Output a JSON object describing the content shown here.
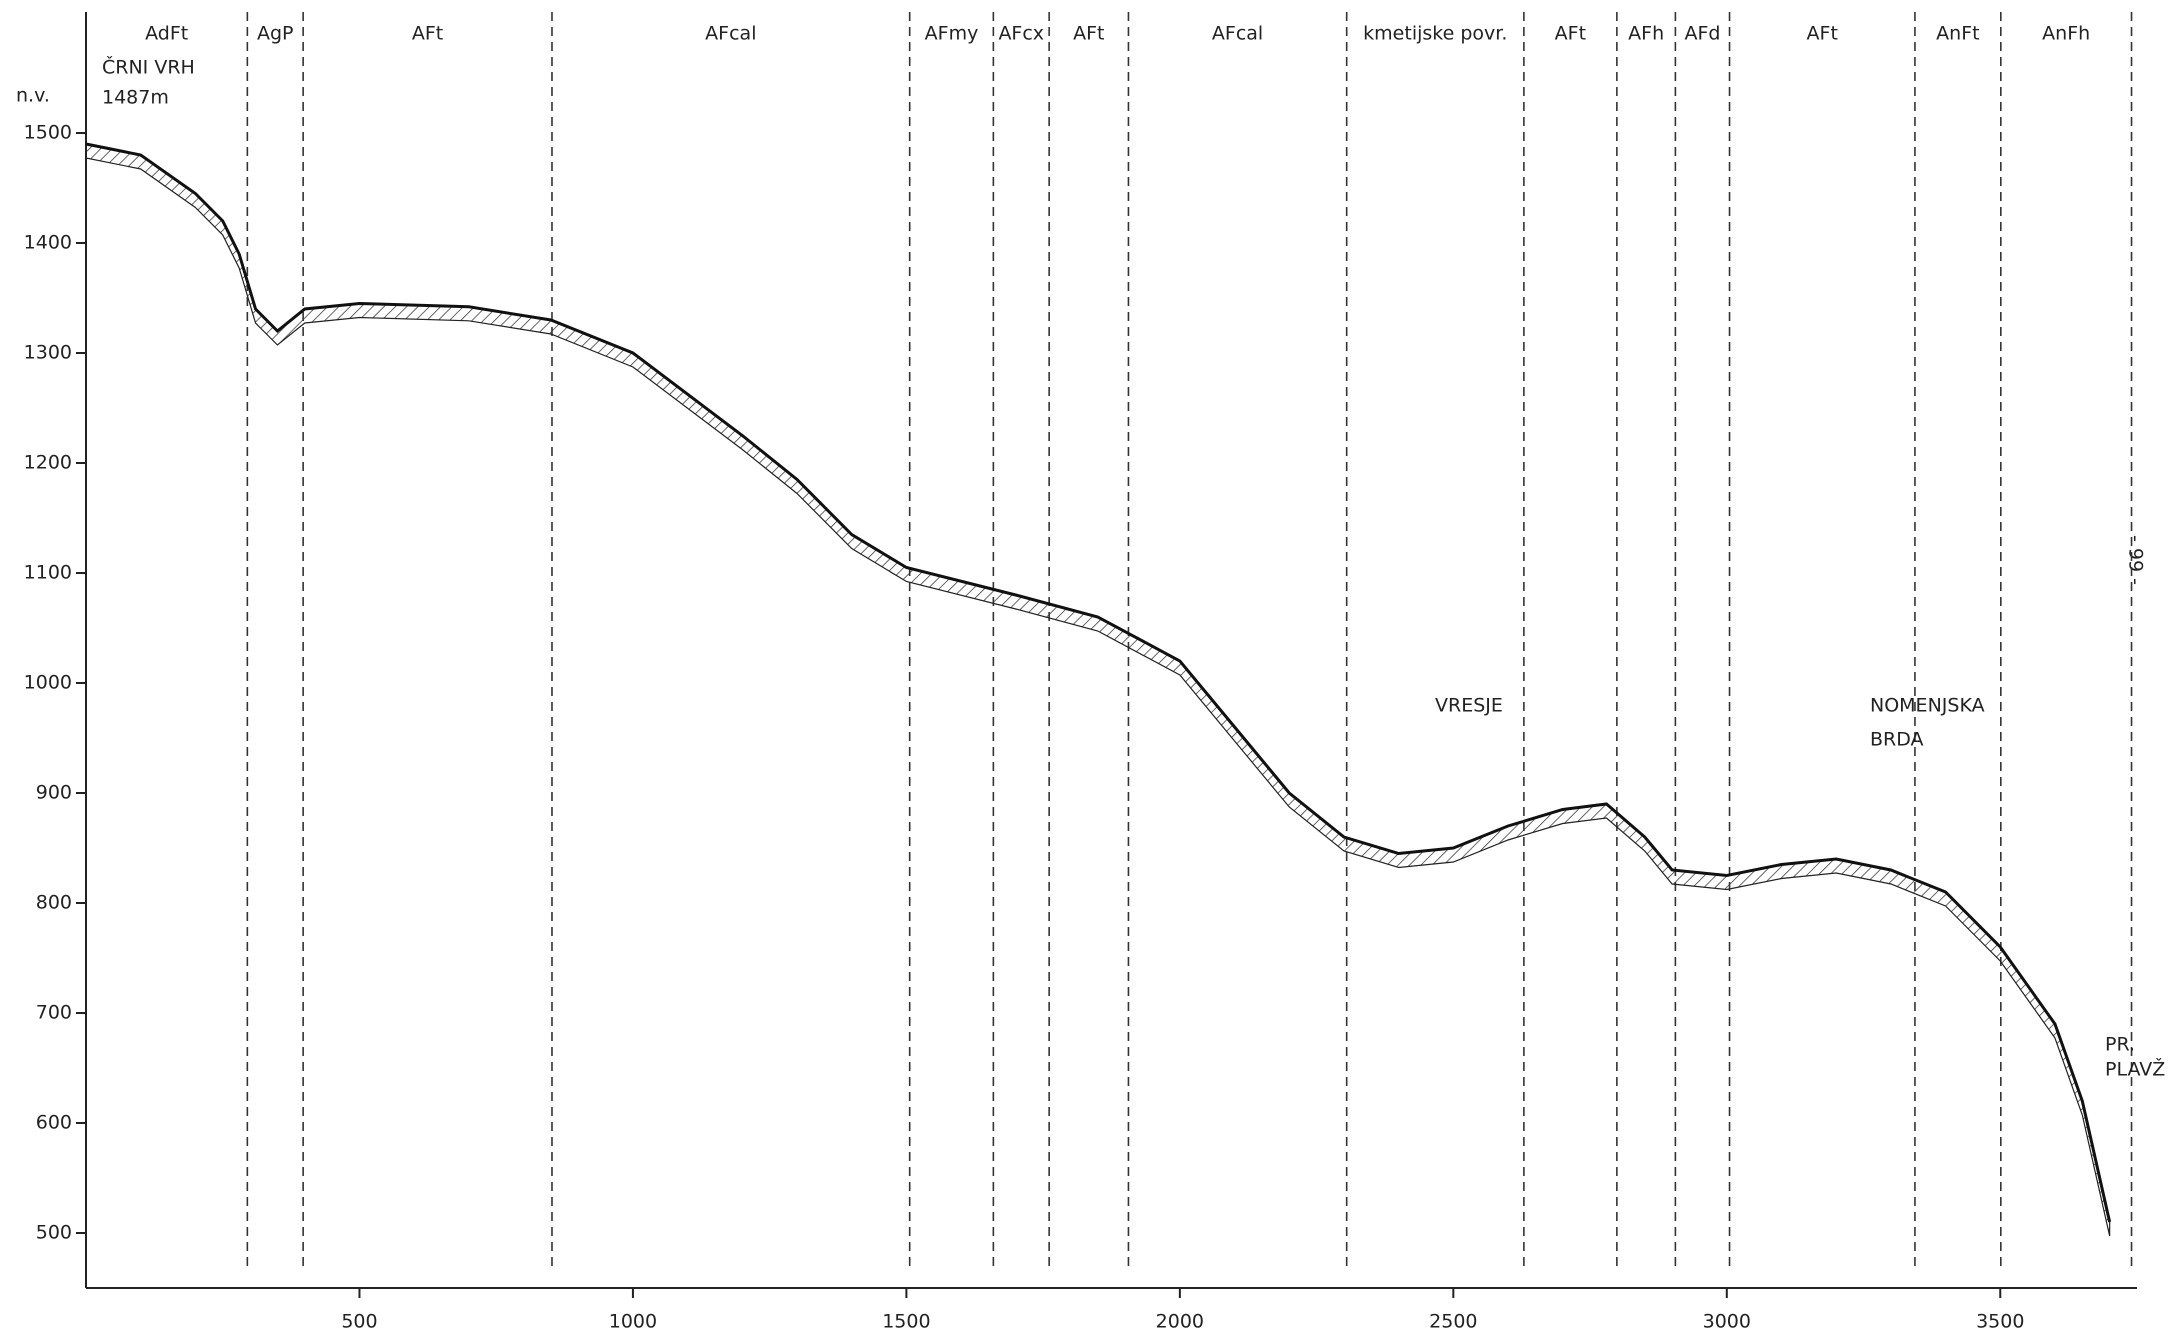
{
  "chart_data": {
    "type": "line",
    "color": "#111111",
    "y_axis_label": "n.v.",
    "x": [
      0,
      100,
      200,
      250,
      280,
      310,
      350,
      400,
      500,
      700,
      850,
      1000,
      1200,
      1300,
      1400,
      1500,
      1700,
      1850,
      2000,
      2100,
      2200,
      2300,
      2400,
      2500,
      2600,
      2700,
      2780,
      2850,
      2900,
      3000,
      3100,
      3200,
      3300,
      3400,
      3500,
      3600,
      3650,
      3700
    ],
    "values": [
      1490,
      1480,
      1445,
      1420,
      1390,
      1340,
      1320,
      1340,
      1345,
      1342,
      1330,
      1300,
      1225,
      1185,
      1135,
      1105,
      1080,
      1060,
      1020,
      960,
      900,
      860,
      845,
      850,
      870,
      885,
      890,
      860,
      830,
      825,
      835,
      840,
      830,
      810,
      760,
      690,
      620,
      510
    ],
    "xlim": [
      0,
      3750
    ],
    "ylim": [
      450,
      1610
    ],
    "xticks": [
      500,
      1000,
      1500,
      2000,
      2500,
      3000,
      3500
    ],
    "yticks": [
      500,
      600,
      700,
      800,
      900,
      1000,
      1100,
      1200,
      1300,
      1400,
      1500
    ],
    "zone_bounds": [
      0,
      295,
      397,
      852,
      1506,
      1659,
      1761,
      1906,
      2305,
      2629,
      2799,
      2906,
      3005,
      3344,
      3501,
      3740
    ],
    "zone_labels": [
      "AdFt",
      "AgP",
      "AFt",
      "AFcal",
      "AFmy",
      "AFcx",
      "AFt",
      "AFcal",
      "kmetijske povr.",
      "AFt",
      "AFh",
      "AFd",
      "AFt",
      "AnFt",
      "AnFh"
    ],
    "annotations": [
      "ČRNI VRH",
      "1487m",
      "VRESJE",
      "NOMENJSKA",
      "BRDA",
      "PR.",
      "PLAVŽ"
    ],
    "page_number": "- 99 -"
  }
}
